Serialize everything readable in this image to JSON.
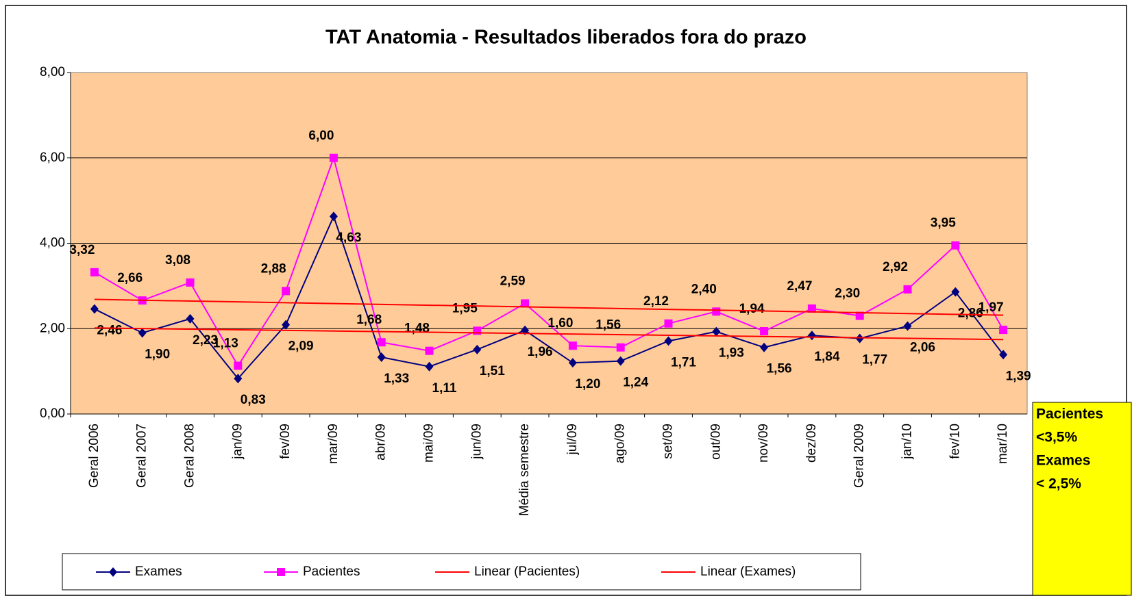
{
  "chart_data": {
    "type": "line",
    "title": "TAT Anatomia  -  Resultados liberados fora do prazo",
    "categories": [
      "Geral 2006",
      "Geral 2007",
      "Geral 2008",
      "jan/09",
      "fev/09",
      "mar/09",
      "abr/09",
      "mai/09",
      "jun/09",
      "Média semestre",
      "jul/09",
      "ago/09",
      "set/09",
      "out/09",
      "nov/09",
      "dez/09",
      "Geral 2009",
      "jan/10",
      "fev/10",
      "mar/10"
    ],
    "series": [
      {
        "name": "Exames",
        "color": "#000080",
        "marker": "diamond",
        "values": [
          2.46,
          1.9,
          2.23,
          0.83,
          2.09,
          4.63,
          1.33,
          1.11,
          1.51,
          1.96,
          1.2,
          1.24,
          1.71,
          1.93,
          1.56,
          1.84,
          1.77,
          2.06,
          2.86,
          1.39
        ],
        "value_labels": [
          "2,46",
          "1,90",
          "2,23",
          "0,83",
          "2,09",
          "4,63",
          "1,33",
          "1,11",
          "1,51",
          "1,96",
          "1,20",
          "1,24",
          "1,71",
          "1,93",
          "1,56",
          "1,84",
          "1,77",
          "2,06",
          "2,86",
          "1,39"
        ]
      },
      {
        "name": "Pacientes",
        "color": "#ff00ff",
        "marker": "square",
        "values": [
          3.32,
          2.66,
          3.08,
          1.13,
          2.88,
          6.0,
          1.68,
          1.48,
          1.95,
          2.59,
          1.6,
          1.56,
          2.12,
          2.4,
          1.94,
          2.47,
          2.3,
          2.92,
          3.95,
          1.97
        ],
        "value_labels": [
          "3,32",
          "2,66",
          "3,08",
          "1,13",
          "2,88",
          "6,00",
          "1,68",
          "1,48",
          "1,95",
          "2,59",
          "1,60",
          "1,56",
          "2,12",
          "2,40",
          "1,94",
          "2,47",
          "2,30",
          "2,92",
          "3,95",
          "1,97"
        ]
      },
      {
        "name": "Linear (Pacientes)",
        "color": "#ff0000",
        "trendline": "linear",
        "trend_of": 1
      },
      {
        "name": "Linear (Exames)",
        "color": "#ff0000",
        "trendline": "linear",
        "trend_of": 0
      }
    ],
    "ylim": [
      0,
      8
    ],
    "yticks": [
      {
        "value": 0,
        "label": "0,00"
      },
      {
        "value": 2,
        "label": "2,00"
      },
      {
        "value": 4,
        "label": "4,00"
      },
      {
        "value": 6,
        "label": "6,00"
      },
      {
        "value": 8,
        "label": "8,00"
      }
    ],
    "grid": true,
    "legend": "bottom",
    "annotation": [
      "Pacientes",
      "<3,5%",
      "Exames",
      "< 2,5%"
    ]
  }
}
